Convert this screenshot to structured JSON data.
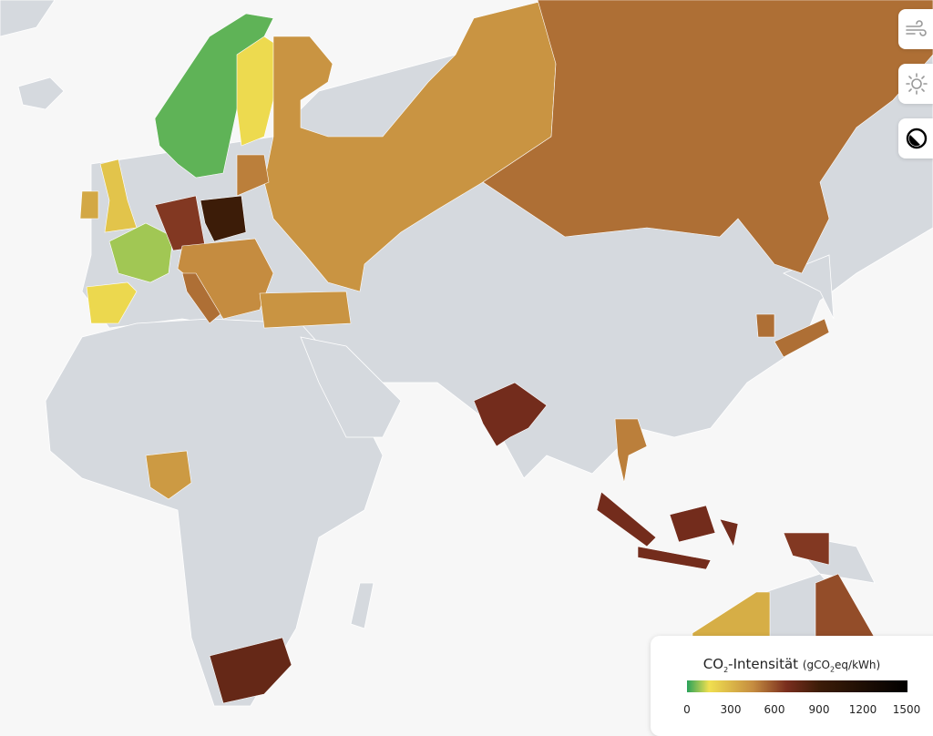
{
  "controls": [
    {
      "name": "wind-layer-button",
      "icon": "wind-icon"
    },
    {
      "name": "solar-layer-button",
      "icon": "sun-icon"
    },
    {
      "name": "dark-mode-button",
      "icon": "contrast-icon"
    }
  ],
  "legend": {
    "title_main": "CO",
    "title_sub": "2",
    "title_rest": "-Intensität ",
    "unit_pre": "(gCO",
    "unit_sub": "2",
    "unit_post": "eq/kWh)",
    "ticks": [
      "0",
      "300",
      "600",
      "900",
      "1200",
      "1500"
    ],
    "scale": {
      "min": 0,
      "max": 1500,
      "colors": [
        "#2aa25a",
        "#f0e050",
        "#c58c40",
        "#7a2e1e",
        "#3c1c08",
        "#000000"
      ]
    }
  },
  "zones": {
    "norway-sweden": 40,
    "finland": 170,
    "russia-west": 420,
    "russia-east": 520,
    "uk": 250,
    "ireland": 350,
    "france": 90,
    "spain": 180,
    "germany": 650,
    "poland": 900,
    "central-europe": 450,
    "baltics": 480,
    "italy": 520,
    "turkey": 420,
    "india": 700,
    "thailand": 480,
    "sumatra": 700,
    "java": 700,
    "borneo": 700,
    "sulawesi": 700,
    "papua": 650,
    "korea": 520,
    "japan": 520,
    "nigeria": 400,
    "south-africa": 750,
    "australia-west": 330,
    "australia-queensland": 600
  }
}
